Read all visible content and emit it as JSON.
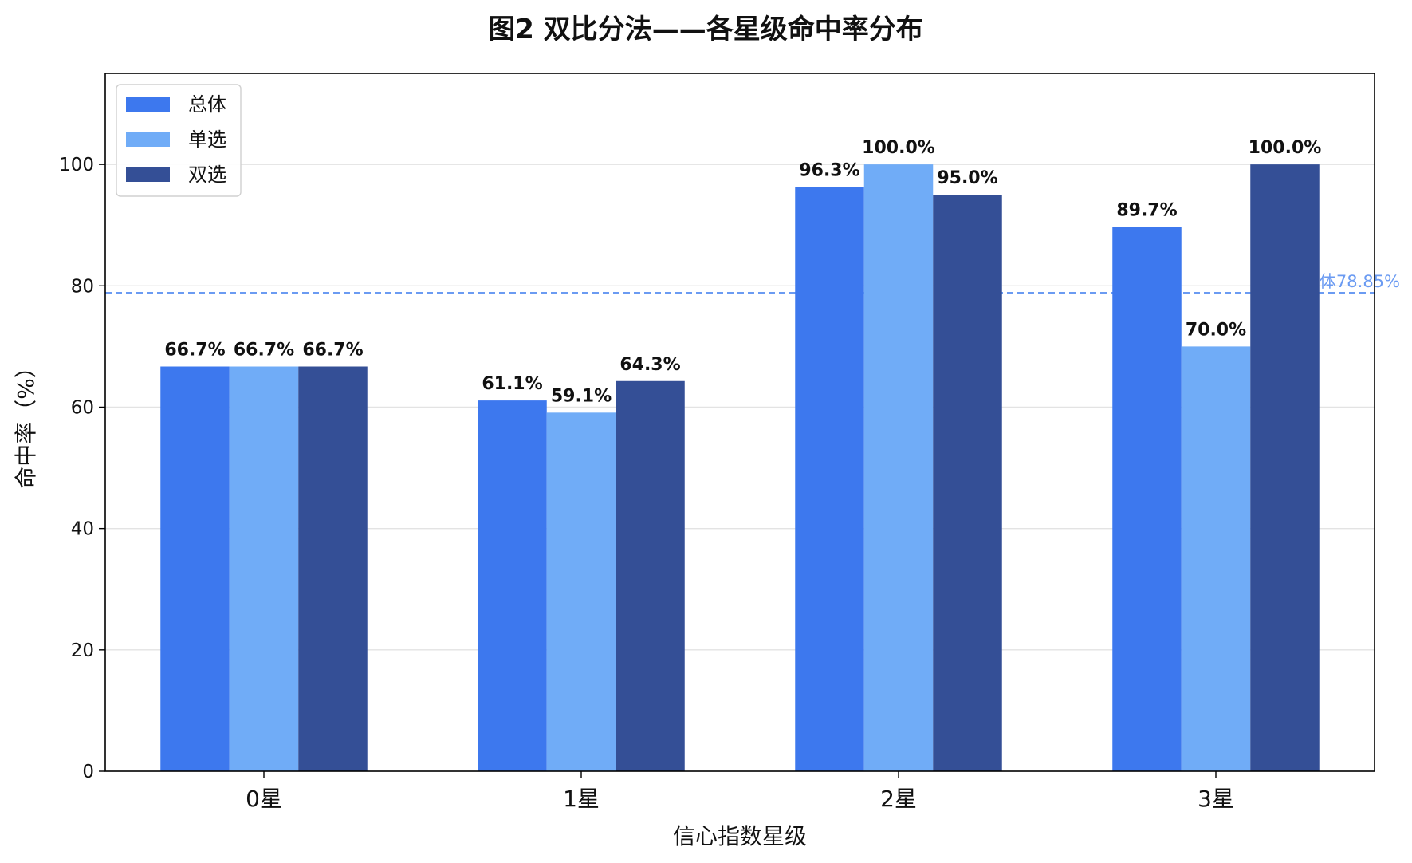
{
  "chart_data": {
    "type": "bar",
    "title": "图2  双比分法——各星级命中率分布",
    "xlabel": "信心指数星级",
    "ylabel": "命中率（%）",
    "categories": [
      "0星",
      "1星",
      "2星",
      "3星"
    ],
    "ylim": [
      0,
      115
    ],
    "yticks": [
      0,
      20,
      40,
      60,
      80,
      100
    ],
    "grid": "horizontal",
    "legend_position": "top-left",
    "series": [
      {
        "name": "总体",
        "color": "#3d78ee",
        "values": [
          66.7,
          61.1,
          96.3,
          89.7
        ],
        "labels": [
          "66.7%",
          "61.1%",
          "96.3%",
          "89.7%"
        ]
      },
      {
        "name": "单选",
        "color": "#70acf7",
        "values": [
          66.7,
          59.1,
          100.0,
          70.0
        ],
        "labels": [
          "66.7%",
          "59.1%",
          "100.0%",
          "70.0%"
        ]
      },
      {
        "name": "双选",
        "color": "#344f96",
        "values": [
          66.7,
          64.3,
          95.0,
          100.0
        ],
        "labels": [
          "66.7%",
          "64.3%",
          "95.0%",
          "100.0%"
        ]
      }
    ],
    "reference_line": {
      "value": 78.85,
      "label": "总体78.85%",
      "color": "#6b9bf2",
      "style": "dashed"
    }
  }
}
